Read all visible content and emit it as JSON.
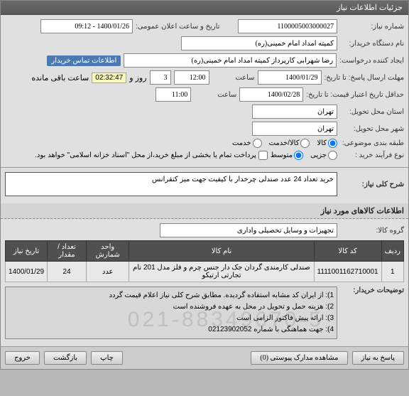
{
  "panel_title": "جزئیات اطلاعات نیاز",
  "header": {
    "need_number_label": "شماره نیاز:",
    "need_number": "1100005003000027",
    "public_datetime_label": "تاریخ و ساعت اعلان عمومی:",
    "public_datetime": "1400/01/26 - 09:12",
    "buyer_org_label": "نام دستگاه خریدار:",
    "buyer_org": "کمیته امداد امام خمینی(ره)",
    "creator_label": "ایجاد کننده درخواست:",
    "creator": "رضا شهرابی کارپرداز کمیته امداد امام خمینی(ره)",
    "contact_link": "اطلاعات تماس خریدار",
    "deadline_send_label": "مهلت ارسال پاسخ: تا تاریخ:",
    "deadline_send_date": "1400/01/29",
    "time_label": "ساعت",
    "deadline_send_time": "12:00",
    "days_and": "و",
    "days_val": "3",
    "days_label": "روز و",
    "clock": "02:32:47",
    "clock_suffix": "ساعت باقی مانده",
    "validity_label": "حداقل تاریخ اعتبار قیمت: تا تاریخ:",
    "validity_date": "1400/02/28",
    "validity_time": "11:00",
    "delivery_province_label": "استان محل تحویل:",
    "delivery_province": "تهران",
    "delivery_city_label": "شهر محل تحویل:",
    "delivery_city": "تهران",
    "group_label": "طبقه بندی موضوعی:",
    "group_options": {
      "goods": "کالا",
      "service": "کالا/خدمت",
      "serviceonly": "خدمت"
    },
    "process_label": "نوع فرآیند خرید :",
    "process_options": {
      "small": "جزیی",
      "medium": "متوسط"
    },
    "payment_note": "پرداخت تمام یا بخشی از مبلغ خرید،از محل \"اسناد خزانه اسلامی\" خواهد بود."
  },
  "summary": {
    "title": "شرح کلی نیاز:",
    "text": "خرید تعداد 24 عدد صندلی چرخدار با کیفیت  جهت میز کنفرانس"
  },
  "items_section_title": "اطلاعات کالاهای مورد نیاز",
  "group_row": {
    "label": "گروه کالا:",
    "value": "تجهیزات و وسایل تحصیلی واداری "
  },
  "table": {
    "columns": [
      "ردیف",
      "کد کالا",
      "نام کالا",
      "واحد شمارش",
      "تعداد / مقدار",
      "تاریخ نیاز"
    ],
    "rows": [
      [
        "1",
        "1111001162710001",
        "صندلی کارمندی گردان جک دار جنس چرم و فلز مدل 201 نام تجارتی ارتیکو",
        "عدد",
        "24",
        "1400/01/29"
      ]
    ]
  },
  "notes": {
    "label": "توضیحات خریدار:",
    "lines": [
      "1): از ایران کد مشابه استفاده گردیده. مطابق شرح کلی نیاز اعلام قیمت گردد",
      "2): هزینه حمل و تحویل در محل به عهده فروشنده است",
      "3): ارائه پیش فاکتور الزامی است",
      "4): جهت هماهنگی با شماره 02123902052"
    ]
  },
  "buttons": {
    "attachments": "مشاهده مدارک پیوستی (0)",
    "reply": "پاسخ به نیاز",
    "print": "چاپ",
    "close": "بازگشت",
    "exit": "خروج"
  },
  "watermark": "021-88349670-5"
}
